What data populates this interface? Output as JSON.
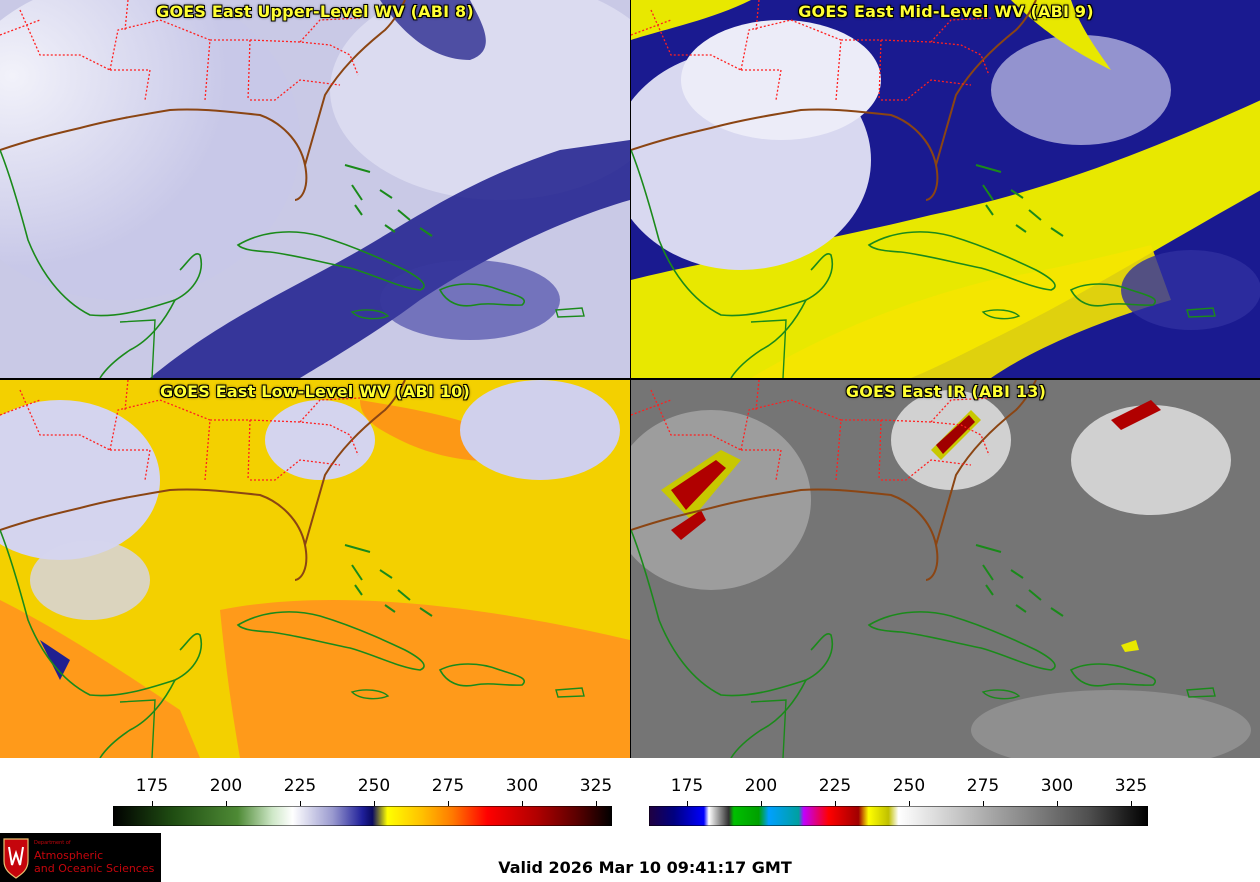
{
  "panels": [
    {
      "title": "GOES East Upper-Level WV (ABI 8)",
      "palette": "wv-upper"
    },
    {
      "title": "GOES East Mid-Level WV (ABI 9)",
      "palette": "wv-mid"
    },
    {
      "title": "GOES East Low-Level WV (ABI 10)",
      "palette": "wv-low"
    },
    {
      "title": "GOES East IR (ABI 13)",
      "palette": "ir"
    }
  ],
  "colorbars": {
    "wv": {
      "ticks": [
        "175",
        "200",
        "225",
        "250",
        "275",
        "300",
        "325"
      ],
      "stops": [
        "#000000",
        "#1f4d12",
        "#4e8a35",
        "#cfe8c8",
        "#ffffff",
        "#9a9acf",
        "#1f1f9a",
        "#0a0a60",
        "#ffff00",
        "#ffc000",
        "#ff7a00",
        "#ff0000",
        "#b00000",
        "#5a0000",
        "#000000"
      ]
    },
    "ir": {
      "ticks": [
        "175",
        "200",
        "225",
        "250",
        "275",
        "300",
        "325"
      ],
      "stops": [
        "#200040",
        "#000080",
        "#0000ff",
        "#ffffff",
        "#00c000",
        "#00a0ff",
        "#c000ff",
        "#ff0000",
        "#a00000",
        "#ffff00",
        "#ffffff",
        "#c8c8c8",
        "#909090",
        "#505050",
        "#000000"
      ]
    }
  },
  "valid_time": "Valid 2026 Mar 10 09:41:17 GMT",
  "logo": {
    "dept": "Department of",
    "line1": "Atmospheric",
    "line2": "and Oceanic Sciences",
    "seal_icon": "uw-crest-icon"
  },
  "colors": {
    "title_yellow": "#ffff33",
    "coastline": "#1a8a1a",
    "state_border": "#ff2020",
    "us_coast": "#8b4513"
  }
}
